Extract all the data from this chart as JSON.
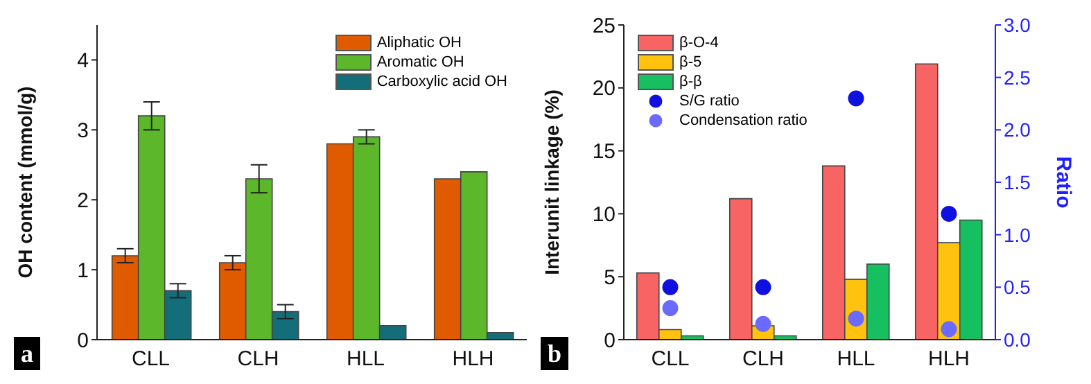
{
  "chart_data": [
    {
      "type": "bar",
      "ylabel": "OH content (mmol/g)",
      "categories": [
        "CLL",
        "CLH",
        "HLL",
        "HLH"
      ],
      "ylim": [
        0,
        4.5
      ],
      "yticks": [
        0,
        1,
        2,
        3,
        4
      ],
      "legend": "top right",
      "grid": false,
      "annotations": [
        "a"
      ],
      "series": [
        {
          "name": "Aliphatic OH",
          "color": "#e05a00",
          "values": [
            1.2,
            1.1,
            2.8,
            2.3
          ],
          "errors": [
            0.1,
            0.1,
            null,
            null
          ]
        },
        {
          "name": "Aromatic OH",
          "color": "#5cb82a",
          "values": [
            3.2,
            2.3,
            2.9,
            2.4
          ],
          "errors": [
            0.2,
            0.2,
            0.1,
            null
          ]
        },
        {
          "name": "Carboxylic acid OH",
          "color": "#136e7a",
          "values": [
            0.7,
            0.4,
            0.2,
            0.1
          ],
          "errors": [
            0.1,
            0.1,
            null,
            null
          ]
        }
      ]
    },
    {
      "type": "bar",
      "ylabel": "Interunit linkage (%)",
      "y2label": "Ratio",
      "categories": [
        "CLL",
        "CLH",
        "HLL",
        "HLH"
      ],
      "ylim": [
        0,
        25
      ],
      "yticks": [
        0,
        5,
        10,
        15,
        20,
        25
      ],
      "y2lim": [
        0,
        3
      ],
      "y2ticks": [
        {
          "value": 0,
          "label": "0.0"
        },
        {
          "value": 0.5,
          "label": "0.5"
        },
        {
          "value": 1,
          "label": "1.0"
        },
        {
          "value": 1.5,
          "label": "1.5"
        },
        {
          "value": 2,
          "label": "2.0"
        },
        {
          "value": 2.5,
          "label": "2.5"
        },
        {
          "value": 3,
          "label": "3.0"
        }
      ],
      "legend": "top left",
      "grid": false,
      "annotations": [
        "b"
      ],
      "series": [
        {
          "name": "β-O-4",
          "color": "#f86464",
          "values": [
            5.3,
            11.2,
            13.8,
            21.9
          ]
        },
        {
          "name": "β-5",
          "color": "#ffc20e",
          "values": [
            0.8,
            1.1,
            4.8,
            7.7
          ]
        },
        {
          "name": "β-β",
          "color": "#16c060",
          "values": [
            0.3,
            0.3,
            6.0,
            9.5
          ]
        },
        {
          "name": "S/G ratio",
          "type": "scatter",
          "axis": "y2",
          "marker": "circle",
          "color": "#1010e0",
          "values": [
            0.5,
            0.5,
            2.3,
            1.2
          ]
        },
        {
          "name": "Condensation ratio",
          "type": "scatter",
          "axis": "y2",
          "marker": "circle",
          "color": "#6a6aff",
          "values": [
            0.3,
            0.15,
            0.2,
            0.1
          ]
        }
      ]
    }
  ]
}
